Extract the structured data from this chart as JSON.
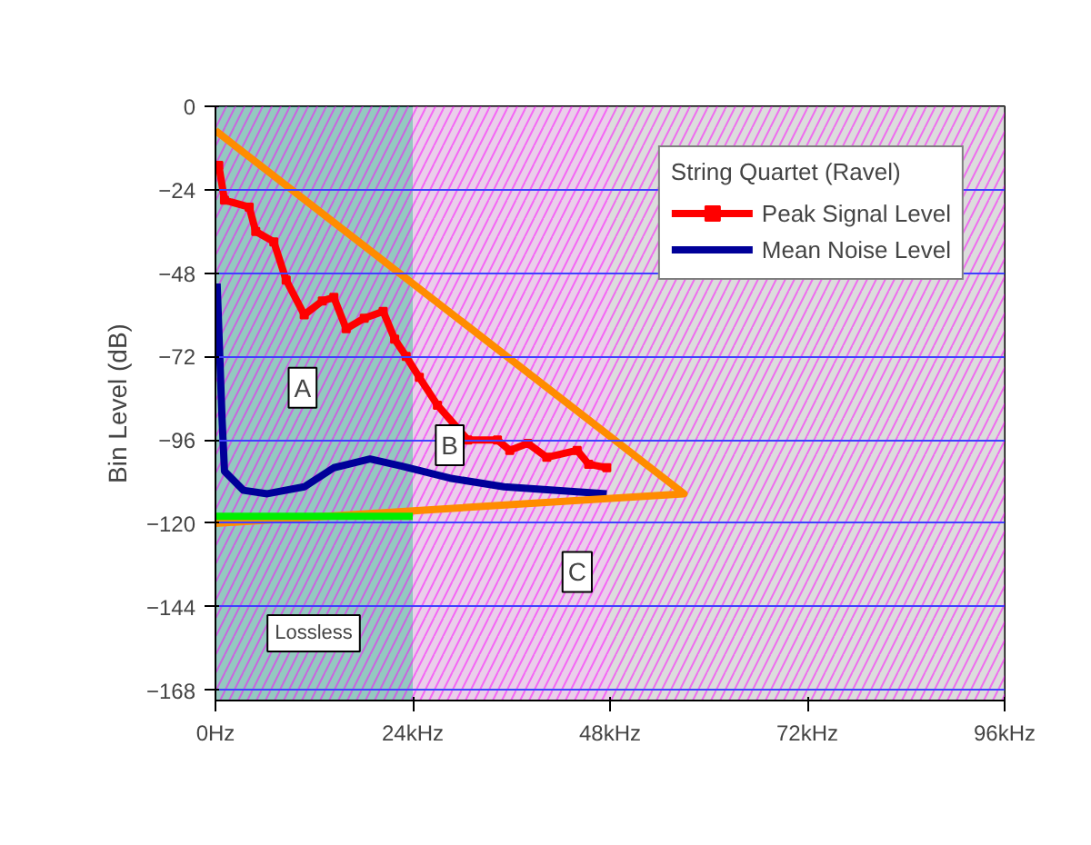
{
  "chart_data": {
    "type": "line",
    "ylabel": "Bin Level (dB)",
    "legend_title": "String Quartet (Ravel)",
    "legend": "top right",
    "grid": "y",
    "line_style": "solid",
    "marker": "none",
    "xlim": [
      0,
      96
    ],
    "ylim": [
      -171,
      0
    ],
    "xticks": [
      {
        "value": 0,
        "label": "0Hz"
      },
      {
        "value": 24,
        "label": "24kHz"
      },
      {
        "value": 48,
        "label": "48kHz"
      },
      {
        "value": 72,
        "label": "72kHz"
      },
      {
        "value": 96,
        "label": "96kHz"
      }
    ],
    "yticks": [
      0,
      -24,
      -48,
      -72,
      -96,
      -120,
      -144,
      -168
    ],
    "series": [
      {
        "name": "Peak Signal Level",
        "color": "#ff0000",
        "marker": "square",
        "x": [
          0.4,
          1.1,
          4.1,
          4.9,
          7.1,
          8.6,
          10.8,
          13,
          14.4,
          15.9,
          18.1,
          20.4,
          21.8,
          23.2,
          24.8,
          27,
          30.7,
          34.3,
          35.8,
          38,
          40.3,
          44,
          45.4,
          47.6
        ],
        "values": [
          -17,
          -27,
          -29,
          -36,
          -39,
          -50,
          -60,
          -56,
          -55,
          -64,
          -61,
          -59,
          -67,
          -72,
          -78,
          -86,
          -96,
          -96,
          -99,
          -97,
          -101,
          -99,
          -103,
          -104
        ]
      },
      {
        "name": "Mean Noise Level",
        "color": "#000099",
        "x": [
          0.2,
          0.8,
          1.1,
          3.4,
          6.3,
          10.8,
          14.4,
          18.8,
          22.6,
          28.5,
          35.1,
          47.6
        ],
        "values": [
          -51,
          -90,
          -105,
          -110.5,
          -111.5,
          -109.5,
          -104,
          -101.5,
          -103.5,
          -107,
          -109.5,
          -111.5
        ]
      },
      {
        "color": "#ff8c00",
        "x": [
          0,
          57,
          0
        ],
        "values": [
          -7,
          -111.5,
          -120
        ]
      },
      {
        "color": "#00ee00",
        "x": [
          0,
          24
        ],
        "values": [
          -118,
          -118
        ]
      }
    ],
    "bands": [
      {
        "axis": "x",
        "from": 0,
        "to": 24,
        "color": "#3c9a8c"
      },
      {
        "axis": "x",
        "from": 24,
        "to": 48,
        "color": "#d9a6d9"
      },
      {
        "axis": "x",
        "from": 48,
        "to": 96,
        "color": "#c0c0c0"
      }
    ],
    "annotations": [
      {
        "text": "A",
        "x": 10.6,
        "y": -81
      },
      {
        "text": "B",
        "x": 28.5,
        "y": -97.5
      },
      {
        "text": "C",
        "x": 44,
        "y": -134
      },
      "Lossless"
    ]
  }
}
